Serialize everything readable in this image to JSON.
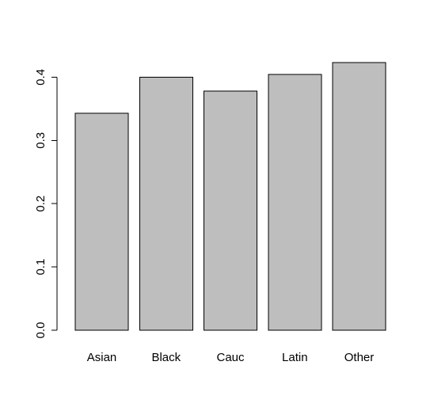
{
  "chart_data": {
    "type": "bar",
    "categories": [
      "Asian",
      "Black",
      "Cauc",
      "Latin",
      "Other"
    ],
    "values": [
      0.343,
      0.4,
      0.378,
      0.404,
      0.423
    ],
    "yticks": [
      0.0,
      0.1,
      0.2,
      0.3,
      0.4
    ],
    "ytick_labels": [
      "0.0",
      "0.1",
      "0.2",
      "0.3",
      "0.4"
    ],
    "ylim": [
      0,
      0.423
    ],
    "bar_color": "#bebebe",
    "grid": false,
    "title": "",
    "xlabel": "",
    "ylabel": ""
  }
}
